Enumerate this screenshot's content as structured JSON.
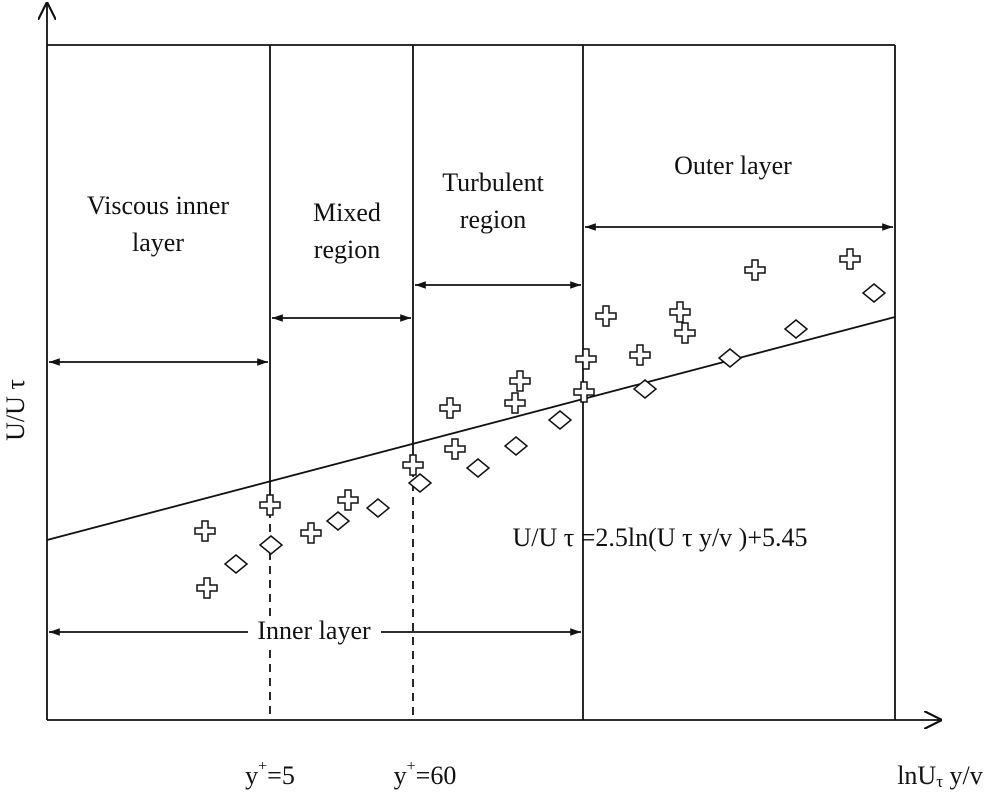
{
  "regions": [
    {
      "lines": [
        "Viscous inner",
        "layer"
      ]
    },
    {
      "lines": [
        "Mixed",
        "region"
      ]
    },
    {
      "lines": [
        "Turbulent",
        "region"
      ]
    },
    {
      "lines": [
        "Outer layer"
      ]
    }
  ],
  "inner_label": "Inner layer",
  "equation": "U/U τ =2.5ln(U τ y/v )+5.45",
  "y_axis_label": "U/U τ",
  "x_axis_label": {
    "main": "lnU",
    "sub": "τ",
    "rest": " y/v"
  },
  "markers": [
    {
      "base": "y",
      "sup": "+",
      "rest": "=5"
    },
    {
      "base": "y",
      "sup": "+",
      "rest": "=60"
    }
  ]
}
